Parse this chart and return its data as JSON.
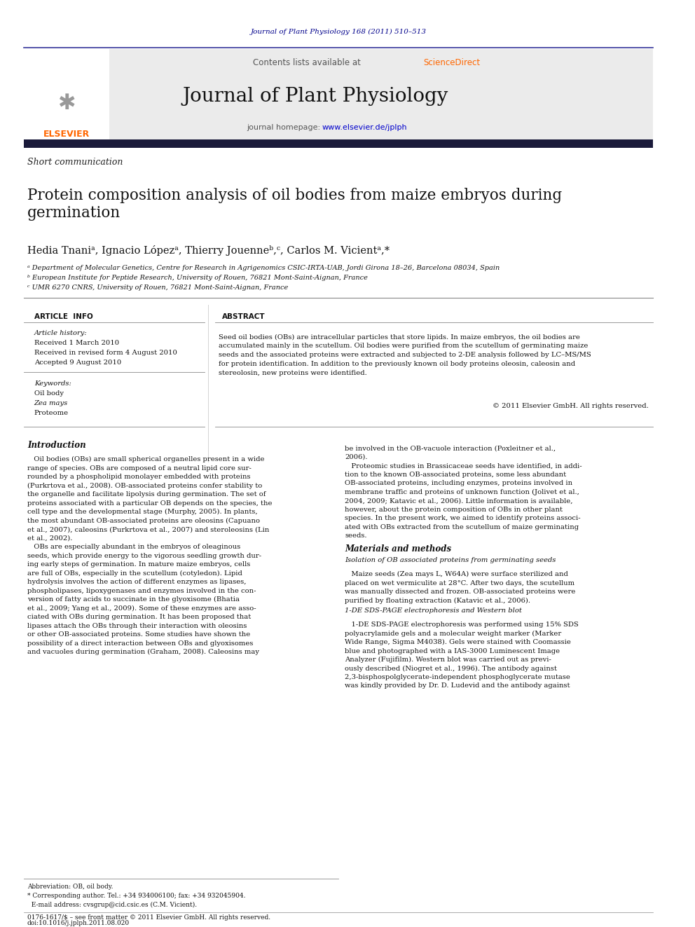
{
  "page_width": 9.92,
  "page_height": 13.23,
  "bg_color": "#ffffff",
  "journal_ref": "Journal of Plant Physiology 168 (2011) 510–513",
  "journal_ref_color": "#00008B",
  "contents_text": "Contents lists available at ",
  "sciencedirect_text": "ScienceDirect",
  "sciencedirect_color": "#FF6600",
  "journal_name": "Journal of Plant Physiology",
  "journal_homepage_label": "journal homepage: ",
  "journal_homepage_url": "www.elsevier.de/jplph",
  "header_bg": "#EBEBEB",
  "dark_bar_color": "#1a1a3a",
  "article_type": "Short communication",
  "paper_title": "Protein composition analysis of oil bodies from maize embryos during\ngermination",
  "authors": "Hedia Tnaniᵃ, Ignacio Lópezᵃ, Thierry Jouenneᵇ,ᶜ, Carlos M. Vicientᵃ,*",
  "affil_a": "ᵃ Department of Molecular Genetics, Centre for Research in Agrigenomics CSIC-IRTA-UAB, Jordi Girona 18–26, Barcelona 08034, Spain",
  "affil_b": "ᵇ European Institute for Peptide Research, University of Rouen, 76821 Mont-Saint-Aignan, France",
  "affil_c": "ᶜ UMR 6270 CNRS, University of Rouen, 76821 Mont-Saint-Aignan, France",
  "section_article_info": "ARTICLE  INFO",
  "section_abstract": "ABSTRACT",
  "article_history_label": "Article history:",
  "received1": "Received 1 March 2010",
  "received2": "Received in revised form 4 August 2010",
  "accepted": "Accepted 9 August 2010",
  "keywords_label": "Keywords:",
  "keyword1": "Oil body",
  "keyword2": "Zea mays",
  "keyword3": "Proteome",
  "abstract_text": "Seed oil bodies (OBs) are intracellular particles that store lipids. In maize embryos, the oil bodies are\naccumulated mainly in the scutellum. Oil bodies were purified from the scutellum of germinating maize\nseeds and the associated proteins were extracted and subjected to 2-DE analysis followed by LC–MS/MS\nfor protein identification. In addition to the previously known oil body proteins oleosin, caleosin and\nstereolosin, new proteins were identified.",
  "copyright": "© 2011 Elsevier GmbH. All rights reserved.",
  "intro_heading": "Introduction",
  "intro_col1_line1": "   Oil bodies (OBs) are small spherical organelles present in a wide",
  "intro_col1_line2": "range of species. OBs are composed of a neutral lipid core sur-",
  "intro_col1_line3": "rounded by a phospholipid monolayer embedded with proteins",
  "intro_col1_line4": "(Purkrtova et al., 2008). OB-associated proteins confer stability to",
  "intro_col1_line5": "the organelle and facilitate lipolysis during germination. The set of",
  "intro_col1_line6": "proteins associated with a particular OB depends on the species, the",
  "intro_col1_line7": "cell type and the developmental stage (Murphy, 2005). In plants,",
  "intro_col1_line8": "the most abundant OB-associated proteins are oleosins (Capuano",
  "intro_col1_line9": "et al., 2007), caleosins (Purkrtova et al., 2007) and steroleosins (Lin",
  "intro_col1_line10": "et al., 2002).",
  "intro_col1_line11": "   OBs are especially abundant in the embryos of oleaginous",
  "intro_col1_line12": "seeds, which provide energy to the vigorous seedling growth dur-",
  "intro_col1_line13": "ing early steps of germination. In mature maize embryos, cells",
  "intro_col1_line14": "are full of OBs, especially in the scutellum (cotyledon). Lipid",
  "intro_col1_line15": "hydrolysis involves the action of different enzymes as lipases,",
  "intro_col1_line16": "phospholipases, lipoxygenases and enzymes involved in the con-",
  "intro_col1_line17": "version of fatty acids to succinate in the glyoxisome (Bhatia",
  "intro_col1_line18": "et al., 2009; Yang et al., 2009). Some of these enzymes are asso-",
  "intro_col1_line19": "ciated with OBs during germination. It has been proposed that",
  "intro_col1_line20": "lipases attach the OBs through their interaction with oleosins",
  "intro_col1_line21": "or other OB-associated proteins. Some studies have shown the",
  "intro_col1_line22": "possibility of a direct interaction between OBs and glyoxisomes",
  "intro_col1_line23": "and vacuoles during germination (Graham, 2008). Caleosins may",
  "intro_col2_line1": "be involved in the OB-vacuole interaction (Poxleitner et al.,",
  "intro_col2_line2": "2006).",
  "intro_col2_line3": "   Proteomic studies in Brassicaceae seeds have identified, in addi-",
  "intro_col2_line4": "tion to the known OB-associated proteins, some less abundant",
  "intro_col2_line5": "OB-associated proteins, including enzymes, proteins involved in",
  "intro_col2_line6": "membrane traffic and proteins of unknown function (Jolivet et al.,",
  "intro_col2_line7": "2004, 2009; Katavic et al., 2006). Little information is available,",
  "intro_col2_line8": "however, about the protein composition of OBs in other plant",
  "intro_col2_line9": "species. In the present work, we aimed to identify proteins associ-",
  "intro_col2_line10": "ated with OBs extracted from the scutellum of maize germinating",
  "intro_col2_line11": "seeds.",
  "materials_heading": "Materials and methods",
  "materials_subheading": "Isolation of OB associated proteins from germinating seeds",
  "mat_col2_line1": "   Maize seeds (Zea mays L, W64A) were surface sterilized and",
  "mat_col2_line2": "placed on wet vermiculite at 28°C. After two days, the scutellum",
  "mat_col2_line3": "was manually dissected and frozen. OB-associated proteins were",
  "mat_col2_line4": "purified by floating extraction (Katavic et al., 2006).",
  "sds_heading": "1-DE SDS-PAGE electrophoresis and Western blot",
  "sds_line1": "   1-DE SDS-PAGE electrophoresis was performed using 15% SDS",
  "sds_line2": "polyacrylamide gels and a molecular weight marker (Marker",
  "sds_line3": "Wide Range, Sigma M4038). Gels were stained with Coomassie",
  "sds_line4": "blue and photographed with a IAS-3000 Luminescent Image",
  "sds_line5": "Analyzer (Fujifilm). Western blot was carried out as previ-",
  "sds_line6": "ously described (Niogret et al., 1996). The antibody against",
  "sds_line7": "2,3-bisphospolglycerate-independent phosphoglycerate mutase",
  "sds_line8": "was kindly provided by Dr. D. Ludevid and the antibody against",
  "footnote_abbrev": "Abbreviation: OB, oil body.",
  "footnote_corresponding": "* Corresponding author. Tel.: +34 934006100; fax: +34 932045904.",
  "footnote_email": "  E-mail address: cvsgrup@cid.csic.es (C.M. Vicient).",
  "footer_line1": "0176-1617/$ – see front matter © 2011 Elsevier GmbH. All rights reserved.",
  "footer_line2": "doi:10.1016/j.jplph.2011.08.020",
  "link_color": "#0000CC",
  "elsevier_orange": "#FF6600"
}
